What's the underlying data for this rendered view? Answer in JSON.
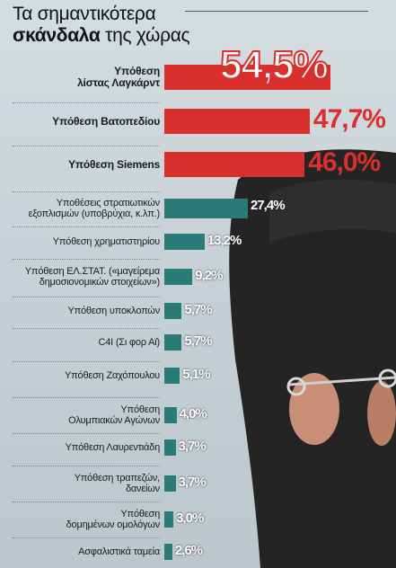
{
  "header": {
    "line1": "Τα σημαντικότερα",
    "line2_bold": "σκάνδαλα",
    "line2_rest": " της χώρας"
  },
  "colors": {
    "top_bar": "#d9302e",
    "other_bar": "#2a7b78",
    "top_text": "#d9302e",
    "other_text": "#ffffff"
  },
  "chart_data": {
    "type": "bar",
    "orientation": "horizontal",
    "unit": "%",
    "title": "Τα σημαντικότερα σκάνδαλα της χώρας",
    "categories": [
      "Υπόθεση λίστας Λαγκάρντ",
      "Υπόθεση Βατοπεδίου",
      "Υπόθεση Siemens",
      "Υποθέσεις στρατιωτικών εξοπλισμών (υποβρύχια, κ.λπ.)",
      "Υπόθεση χρηματιστηρίου",
      "Υπόθεση ΕΛ.ΣΤΑΤ. («μαγείρεμα δημοσιονομικών στοιχείων»)",
      "Υπόθεση υποκλοπών",
      "C4I (Σι φορ Αϊ)",
      "Υπόθεση Ζαχόπουλου",
      "Υπόθεση Ολυμπιακών Αγώνων",
      "Υπόθεση Λαυρεντιάδη",
      "Υπόθεση τραπεζών, δανείων",
      "Υπόθεση δομημένων ομολόγων",
      "Ασφαλιστικά ταμεία"
    ],
    "values": [
      54.5,
      47.7,
      46.0,
      27.4,
      13.2,
      9.2,
      5.7,
      5.7,
      5.1,
      4.0,
      3.7,
      3.7,
      3.0,
      2.6
    ],
    "value_labels": [
      "54,5%",
      "47,7%",
      "46,0%",
      "27,4%",
      "13,2%",
      "9,2%",
      "5,7%",
      "5,7%",
      "5,1%",
      "4,0%",
      "3,7%",
      "3,7%",
      "3,0%",
      "2,6%"
    ],
    "label_lines": [
      [
        "Υπόθεση",
        "λίστας Λαγκάρντ"
      ],
      [
        "Υπόθεση Βατοπεδίου"
      ],
      [
        "Υπόθεση Siemens"
      ],
      [
        "Υποθέσεις στρατιωτικών",
        "εξοπλισμών (υποβρύχια, κ.λπ.)"
      ],
      [
        "Υπόθεση χρηματιστηρίου"
      ],
      [
        "Υπόθεση ΕΛ.ΣΤΑΤ. («μαγείρεμα",
        "δημοσιονομικών στοιχείων»)"
      ],
      [
        "Υπόθεση υποκλοπών"
      ],
      [
        "C4I (Σι φορ Αϊ)"
      ],
      [
        "Υπόθεση Ζαχόπουλου"
      ],
      [
        "Υπόθεση",
        "Ολυμπιακών Αγώνων"
      ],
      [
        "Υπόθεση Λαυρεντιάδη"
      ],
      [
        "Υπόθεση τραπεζών,",
        "δανείων"
      ],
      [
        "Υπόθεση",
        "δομημένων ομολόγων"
      ],
      [
        "Ασφαλιστικά ταμεία"
      ]
    ],
    "highlight_count": 3,
    "xlim": [
      0,
      54.5
    ],
    "grid": false,
    "legend": "none"
  }
}
